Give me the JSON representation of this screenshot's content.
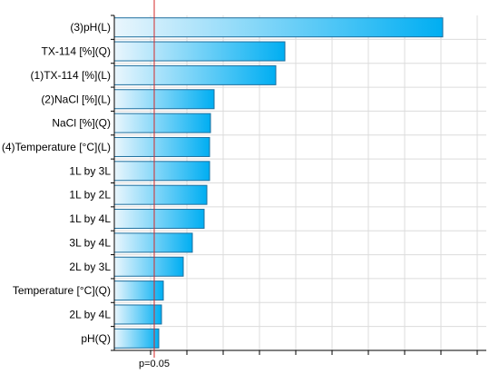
{
  "chart_data": {
    "type": "bar",
    "orientation": "horizontal",
    "categories": [
      "(3)pH(L)",
      "TX-114  [%](Q)",
      "(1)TX-114  [%](L)",
      "(2)NaCl [%](L)",
      "NaCl [%](Q)",
      "(4)Temperature [°C](L)",
      "1L by 3L",
      "1L by 2L",
      "1L by 4L",
      "3L by 4L",
      "2L by 3L",
      "Temperature [°C](Q)",
      "2L by 4L",
      "pH(Q)"
    ],
    "values": [
      18.1,
      9.4,
      8.9,
      5.5,
      5.3,
      5.25,
      5.25,
      5.1,
      4.95,
      4.3,
      3.8,
      2.7,
      2.6,
      2.45
    ],
    "reference_line": {
      "value": 2.2,
      "label": "p=0.05"
    },
    "xlim": [
      0,
      20.5
    ],
    "grid": true,
    "legend": "none",
    "colors": {
      "bar_start": "#eaf6fd",
      "bar_end": "#00aef2",
      "bar_border": "#1f6f9e",
      "reference": "#d42a2a",
      "grid": "#dcdcdc",
      "axis": "#000000"
    }
  }
}
